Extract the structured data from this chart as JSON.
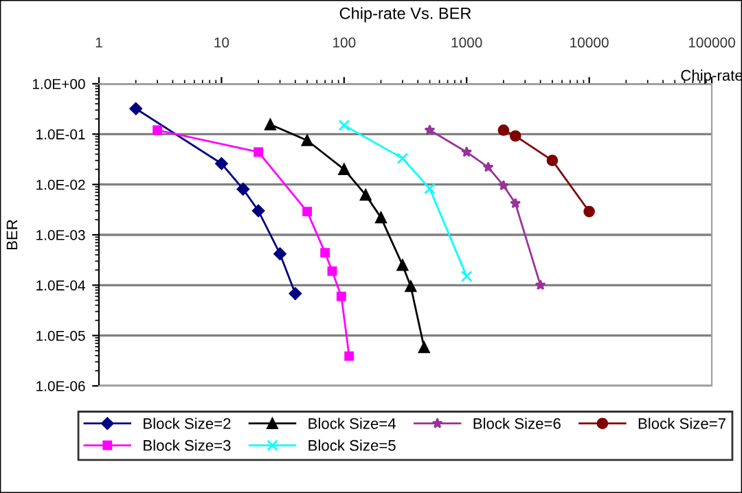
{
  "chart_data": {
    "type": "line",
    "title": "Chip-rate Vs. BER",
    "xlabel": "Chip-rate",
    "ylabel": "BER",
    "log": "xy",
    "grid": "y",
    "legend": "bottom",
    "xlim": [
      1,
      100000
    ],
    "xticks": [
      1,
      10,
      100,
      1000,
      10000,
      100000
    ],
    "ylim": [
      1e-06,
      1
    ],
    "yticks": [
      {
        "value": 1e-06,
        "label": "1.0E-06"
      },
      {
        "value": 1e-05,
        "label": "1.0E-05"
      },
      {
        "value": 0.0001,
        "label": "1.0E-04"
      },
      {
        "value": 0.001,
        "label": "1.0E-03"
      },
      {
        "value": 0.01,
        "label": "1.0E-02"
      },
      {
        "value": 0.1,
        "label": "1.0E-01"
      },
      {
        "value": 1,
        "label": "1.0E+00"
      }
    ],
    "series": [
      {
        "name": "Block Size=2",
        "color": "#000080",
        "marker": "diamond",
        "x": [
          2,
          10,
          15,
          20,
          30,
          40
        ],
        "values": [
          0.32,
          0.026,
          0.0081,
          0.003,
          0.00042,
          6.8e-05
        ]
      },
      {
        "name": "Block Size=3",
        "color": "#ff00ff",
        "marker": "square",
        "x": [
          3,
          20,
          50,
          70,
          80,
          95,
          110
        ],
        "values": [
          0.12,
          0.044,
          0.0029,
          0.00044,
          0.00019,
          6e-05,
          3.9e-06
        ]
      },
      {
        "name": "Block Size=4",
        "color": "#000000",
        "marker": "triangle",
        "x": [
          25,
          50,
          100,
          150,
          200,
          300,
          350,
          450
        ],
        "values": [
          0.155,
          0.075,
          0.02,
          0.0062,
          0.0022,
          0.00025,
          9.5e-05,
          5.8e-06
        ]
      },
      {
        "name": "Block Size=5",
        "color": "#00ffff",
        "marker": "cross",
        "x": [
          100,
          300,
          500,
          1000
        ],
        "values": [
          0.15,
          0.033,
          0.0083,
          0.00015
        ]
      },
      {
        "name": "Block Size=6",
        "color": "#993399",
        "marker": "star",
        "x": [
          500,
          1000,
          1500,
          2000,
          2500,
          4000
        ],
        "values": [
          0.12,
          0.044,
          0.022,
          0.0095,
          0.0042,
          0.0001
        ]
      },
      {
        "name": "Block Size=7",
        "color": "#800000",
        "marker": "circle",
        "x": [
          2000,
          2500,
          5000,
          10000
        ],
        "values": [
          0.12,
          0.092,
          0.03,
          0.0029
        ]
      }
    ]
  }
}
